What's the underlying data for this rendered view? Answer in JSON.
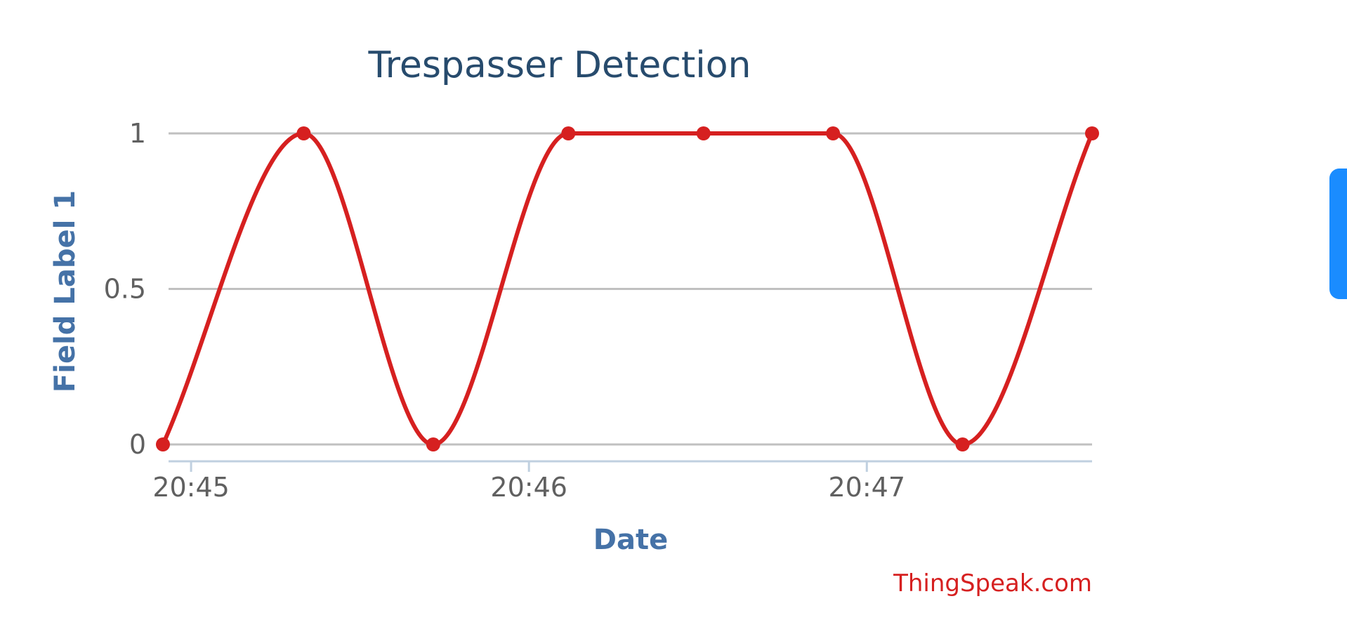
{
  "chart_data": {
    "type": "line",
    "title": "Trespasser Detection",
    "xlabel": "Date",
    "ylabel": "Field Label 1",
    "credit": "ThingSpeak.com",
    "ylim": [
      0,
      1
    ],
    "yticks": [
      {
        "value": 0,
        "label": "0"
      },
      {
        "value": 0.5,
        "label": "0.5"
      },
      {
        "value": 1,
        "label": "1"
      }
    ],
    "xlim": [
      "20:44:56",
      "20:47:40"
    ],
    "xticks": [
      {
        "value": "20:45:00",
        "label": "20:45"
      },
      {
        "value": "20:46:00",
        "label": "20:46"
      },
      {
        "value": "20:47:00",
        "label": "20:47"
      }
    ],
    "grid": true,
    "smooth": true,
    "series": [
      {
        "color": "#d62020",
        "x": [
          "20:44:55",
          "20:45:20",
          "20:45:43",
          "20:46:07",
          "20:46:31",
          "20:46:54",
          "20:47:17",
          "20:47:40"
        ],
        "y": [
          0,
          1,
          0,
          1,
          1,
          1,
          0,
          1
        ]
      }
    ],
    "colors": {
      "title": "#274b6d",
      "axis_title": "#4572a7",
      "tick_label": "#606060",
      "grid": "#c0c0c0",
      "x_axis_line": "#c0d0e0",
      "credit": "#d62020",
      "side_tab": "#1a8cff"
    }
  }
}
